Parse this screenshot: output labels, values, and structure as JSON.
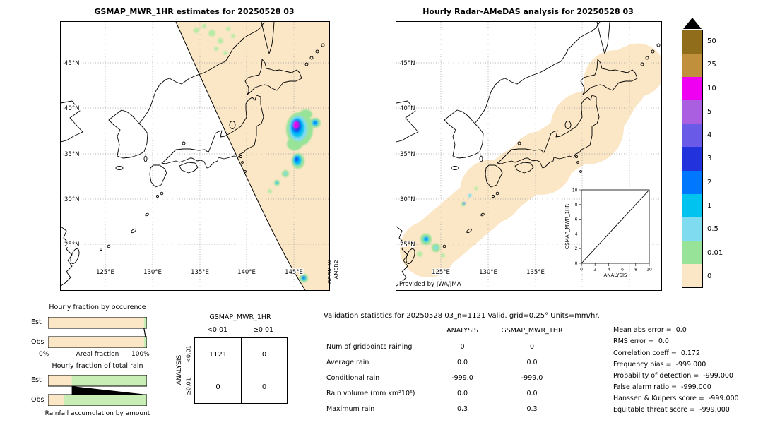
{
  "left_map": {
    "title": "GSMAP_MWR_1HR estimates for 20250528 03",
    "lat_labels": [
      "45°N",
      "40°N",
      "35°N",
      "30°N",
      "25°N"
    ],
    "lon_labels": [
      "125°E",
      "130°E",
      "135°E",
      "140°E",
      "145°E"
    ],
    "satellite_label_line1": "GCOM-W",
    "satellite_label_line2": "AMSR2"
  },
  "right_map": {
    "title": "Hourly Radar-AMeDAS analysis for 20250528 03",
    "lat_labels": [
      "45°N",
      "40°N",
      "35°N",
      "30°N",
      "25°N"
    ],
    "lon_labels": [
      "125°E",
      "130°E",
      "135°E"
    ],
    "credit": "Provided by JWA/JMA"
  },
  "colorbar": {
    "segments": [
      {
        "value": "50",
        "color": "#8f6d1a"
      },
      {
        "value": "25",
        "color": "#c0903c"
      },
      {
        "value": "10",
        "color": "#f000f0"
      },
      {
        "value": "5",
        "color": "#a95fe0"
      },
      {
        "value": "4",
        "color": "#6a5ae8"
      },
      {
        "value": "3",
        "color": "#2233dd"
      },
      {
        "value": "2",
        "color": "#0077ff"
      },
      {
        "value": "1",
        "color": "#00c3f0"
      },
      {
        "value": "0.5",
        "color": "#7fdcf0"
      },
      {
        "value": "0.01",
        "color": "#97e397"
      },
      {
        "value": "0",
        "color": "#fbe7c6"
      }
    ]
  },
  "chart_data": [
    {
      "id": "contingency_table",
      "type": "table",
      "title": "GSMAP_MWR_1HR",
      "row_axis_label": "ANALYSIS",
      "col_headers": [
        "<0.01",
        "≥0.01"
      ],
      "row_headers": [
        "<0.01",
        "≥0.01"
      ],
      "cells": [
        [
          "1121",
          "0"
        ],
        [
          "0",
          "0"
        ]
      ]
    },
    {
      "id": "validation_statistics",
      "type": "table",
      "title": "Validation statistics for 20250528 03_n=1121 Valid. grid=0.25° Units=mm/hr.",
      "col_headers": [
        "ANALYSIS",
        "GSMAP_MWR_1HR"
      ],
      "rows": [
        {
          "label": "Num of gridpoints raining",
          "values": [
            "0",
            "0"
          ]
        },
        {
          "label": "Average rain",
          "values": [
            "0.0",
            "0.0"
          ]
        },
        {
          "label": "Conditional rain",
          "values": [
            "-999.0",
            "-999.0"
          ]
        },
        {
          "label": "Rain volume (mm km²10⁶)",
          "values": [
            "0.0",
            "0.0"
          ]
        },
        {
          "label": "Maximum rain",
          "values": [
            "0.3",
            "0.3"
          ]
        }
      ]
    },
    {
      "id": "validation_scores",
      "type": "table",
      "rows": [
        {
          "label": "Mean abs error =",
          "value": "0.0"
        },
        {
          "label": "RMS error =",
          "value": "0.0"
        },
        {
          "label": "Correlation coeff =",
          "value": "0.172"
        },
        {
          "label": "Frequency bias =",
          "value": "-999.000"
        },
        {
          "label": "Probability of detection =",
          "value": "-999.000"
        },
        {
          "label": "False alarm ratio =",
          "value": "-999.000"
        },
        {
          "label": "Hanssen & Kuipers score =",
          "value": "-999.000"
        },
        {
          "label": "Equitable threat score =",
          "value": "-999.000"
        }
      ]
    },
    {
      "id": "hourly_fraction_by_occurrence",
      "type": "bar",
      "title": "Hourly fraction by occurence",
      "xlabel": "Areal fraction",
      "xlim": [
        "0%",
        "100%"
      ],
      "bars": [
        {
          "label": "Est",
          "no_rain_pct": 97,
          "rain_pct": 3,
          "rain_start_pct": 97
        },
        {
          "label": "Obs",
          "no_rain_pct": 97,
          "rain_pct": 3,
          "rain_start_pct": 97
        }
      ]
    },
    {
      "id": "hourly_fraction_of_total_rain",
      "type": "bar",
      "title": "Hourly fraction of total rain",
      "xlabel": "Rainfall accumulation by amount",
      "bars": [
        {
          "label": "Est",
          "no_rain_pct": 24,
          "rain_pct": 76,
          "rain_start_pct": 24
        },
        {
          "label": "Obs",
          "no_rain_pct": 16,
          "rain_pct": 84,
          "rain_start_pct": 16
        }
      ]
    },
    {
      "id": "inset_identity_plot",
      "type": "scatter",
      "xlabel": "ANALYSIS",
      "ylabel": "GSMAP_MWR_1HR",
      "xlim": [
        0,
        10
      ],
      "ylim": [
        0,
        10
      ],
      "ticks": [
        "0",
        "2",
        "4",
        "6",
        "8",
        "10"
      ],
      "points": [],
      "reference_line": "y = x"
    }
  ]
}
